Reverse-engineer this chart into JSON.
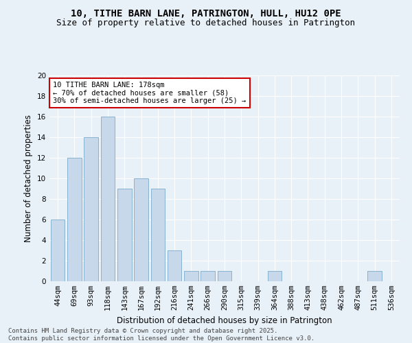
{
  "title_line1": "10, TITHE BARN LANE, PATRINGTON, HULL, HU12 0PE",
  "title_line2": "Size of property relative to detached houses in Patrington",
  "xlabel": "Distribution of detached houses by size in Patrington",
  "ylabel": "Number of detached properties",
  "bar_color": "#c8d8eb",
  "bar_edge_color": "#7aaac8",
  "categories": [
    "44sqm",
    "69sqm",
    "93sqm",
    "118sqm",
    "143sqm",
    "167sqm",
    "192sqm",
    "216sqm",
    "241sqm",
    "266sqm",
    "290sqm",
    "315sqm",
    "339sqm",
    "364sqm",
    "388sqm",
    "413sqm",
    "438sqm",
    "462sqm",
    "487sqm",
    "511sqm",
    "536sqm"
  ],
  "values": [
    6,
    12,
    14,
    16,
    9,
    10,
    9,
    3,
    1,
    1,
    1,
    0,
    0,
    1,
    0,
    0,
    0,
    0,
    0,
    1,
    0
  ],
  "ylim": [
    0,
    20
  ],
  "yticks": [
    0,
    2,
    4,
    6,
    8,
    10,
    12,
    14,
    16,
    18,
    20
  ],
  "annotation_text": "10 TITHE BARN LANE: 178sqm\n← 70% of detached houses are smaller (58)\n30% of semi-detached houses are larger (25) →",
  "annotation_box_color": "#ffffff",
  "annotation_edge_color": "#cc0000",
  "bg_color": "#e8f0f8",
  "footer_text": "Contains HM Land Registry data © Crown copyright and database right 2025.\nContains public sector information licensed under the Open Government Licence v3.0.",
  "grid_color": "#ffffff",
  "title_fontsize": 10,
  "subtitle_fontsize": 9,
  "axis_label_fontsize": 8.5,
  "tick_fontsize": 7.5,
  "annotation_fontsize": 7.5,
  "footer_fontsize": 6.5
}
